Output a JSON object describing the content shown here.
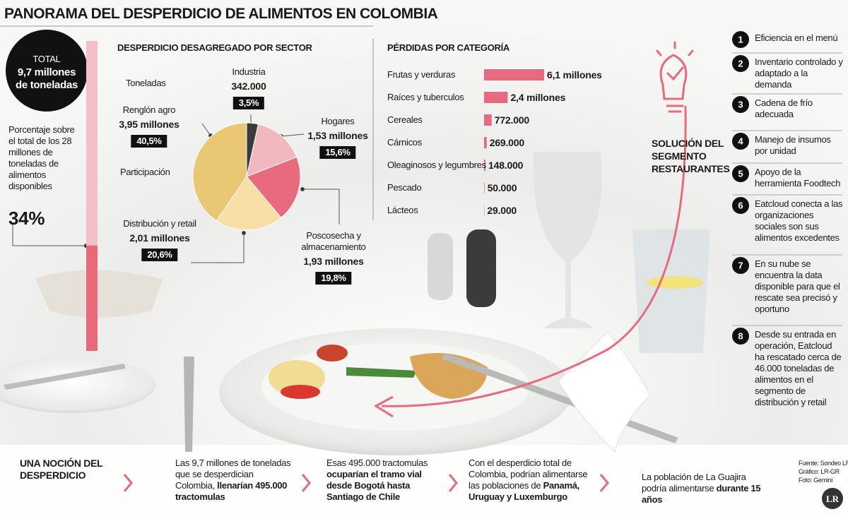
{
  "title": "PANORAMA DEL DESPERDICIO DE ALIMENTOS EN COLOMBIA",
  "total": {
    "label": "TOTAL",
    "amount": "9,7 millones de toneladas",
    "note": "Porcentaje sobre el total de los 28 millones de toneladas de alimentos disponibles",
    "share": 34,
    "share_label": "34%"
  },
  "chart_data": [
    {
      "type": "pie",
      "title": "DESPERDICIO DESAGREGADO POR SECTOR",
      "size_caption": "Toneladas",
      "share_caption": "Participación",
      "categories": [
        "Industria",
        "Hogares",
        "Poscosecha y almacenamiento",
        "Distribución y retail",
        "Renglón agro"
      ],
      "values": [
        3.5,
        15.6,
        19.8,
        20.6,
        40.5
      ],
      "value_labels": [
        "3,5%",
        "15,6%",
        "19,8%",
        "20,6%",
        "40,5%"
      ],
      "tonnage_labels": [
        "342.000",
        "1,53 millones",
        "1,93 millones",
        "2,01 millones",
        "3,95 millones"
      ],
      "colors": [
        "#3a3a3a",
        "#f2b8c0",
        "#e9697e",
        "#f8dfa8",
        "#e9c774"
      ]
    },
    {
      "type": "bar",
      "orientation": "horizontal",
      "title": "PÉRDIDAS POR CATEGORÍA",
      "categories": [
        "Frutas y verduras",
        "Raíces y tuberculos",
        "Cereales",
        "Cárnicos",
        "Oleaginosos y legumbres",
        "Pescado",
        "Lácteos"
      ],
      "values": [
        6100000,
        2400000,
        772000,
        269000,
        148000,
        50000,
        29000
      ],
      "value_labels": [
        "6,1 millones",
        "2,4 millones",
        "772.000",
        "269.000",
        "148.000",
        "50.000",
        "29.000"
      ],
      "color": "#e9697e"
    }
  ],
  "solution": {
    "title": "SOLUCIÓN DEL SEGMENTO RESTAURANTES",
    "items": [
      {
        "number": 1,
        "text": "Eficiencia en el menú"
      },
      {
        "number": 2,
        "text": "Inventario controlado y adaptado a la demanda"
      },
      {
        "number": 3,
        "text": "Cadena de frío adecuada"
      },
      {
        "number": 4,
        "text": "Manejo de insumos por unidad"
      },
      {
        "number": 5,
        "text": "Apoyo de la herramienta Foodtech"
      },
      {
        "number": 6,
        "text": "Eatcloud conecta a las organizaciones sociales son sus alimentos excedentes"
      },
      {
        "number": 7,
        "text": "En su nube se encuentra la data disponible para que el rescate sea precisó y oportuno"
      },
      {
        "number": 8,
        "text": "Desde su entrada en operación, Eatcloud ha rescatado cerca de 46.000 toneladas de alimentos en el segmento de distribución y retail"
      }
    ]
  },
  "notion": {
    "title": "UNA NOCIÓN DEL DESPERDICIO",
    "facts": [
      [
        {
          "text": "Las 9,7 millones de toneladas que se desperdician Colombia, "
        },
        {
          "text": "llenarían 495.000 tractomulas",
          "bold": true
        }
      ],
      [
        {
          "text": "Esas 495.000 tractomulas "
        },
        {
          "text": "ocuparían el tramo vial desde Bogotá hasta Santiago de Chile",
          "bold": true
        }
      ],
      [
        {
          "text": "Con el desperdicio total de Colombia, podrían alimentarse las poblaciones de "
        },
        {
          "text": "Panamá, Uruguay y Luxemburgo",
          "bold": true
        }
      ],
      [
        {
          "text": "La población de La Guajira podría alimentarse "
        },
        {
          "text": "durante 15 años",
          "bold": true
        }
      ]
    ]
  },
  "sources": [
    "Fuente: Sondeo LR",
    "Gráfico: LR-GR",
    "Foto: Gemini"
  ],
  "logo": "LR"
}
